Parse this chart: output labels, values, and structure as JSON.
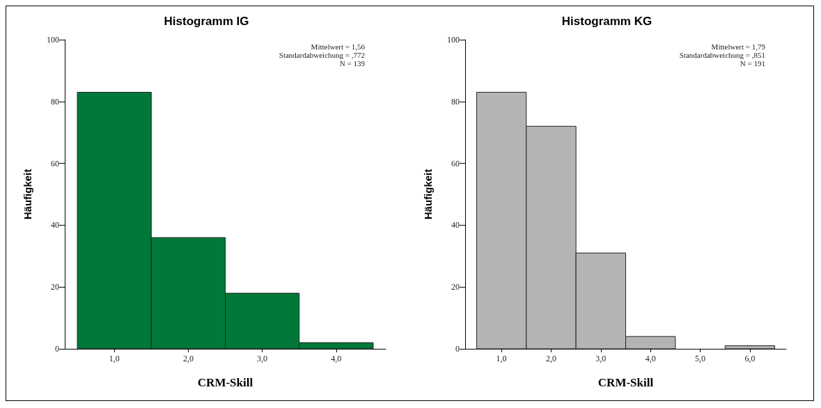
{
  "chart_data": [
    {
      "type": "histogram",
      "title": "Histogramm IG",
      "xlabel": "CRM-Skill",
      "ylabel": "Häufigkeit",
      "color": "#00783a",
      "bins": [
        0.5,
        1.5,
        2.5,
        3.5,
        4.5
      ],
      "values": [
        83,
        36,
        18,
        2
      ],
      "xlim": [
        0.33,
        4.67
      ],
      "xticks": [
        {
          "value": 1,
          "label": "1,0"
        },
        {
          "value": 2,
          "label": "2,0"
        },
        {
          "value": 3,
          "label": "3,0"
        },
        {
          "value": 4,
          "label": "4,0"
        }
      ],
      "ylim": [
        0,
        100
      ],
      "yticks": [
        0,
        20,
        40,
        60,
        80,
        100
      ],
      "annotations": [
        "Mittelwert = 1,56",
        "Standardabweichung = ,772",
        "N = 139"
      ]
    },
    {
      "type": "histogram",
      "title": "Histogramm KG",
      "xlabel": "CRM-Skill",
      "ylabel": "Häufigkeit",
      "color": "#b4b4b4",
      "bins": [
        0.5,
        1.5,
        2.5,
        3.5,
        4.5,
        5.5,
        6.5
      ],
      "values": [
        83,
        72,
        31,
        4,
        0,
        1
      ],
      "xlim": [
        0.27,
        6.73
      ],
      "xticks": [
        {
          "value": 1,
          "label": "1,0"
        },
        {
          "value": 2,
          "label": "2,0"
        },
        {
          "value": 3,
          "label": "3,0"
        },
        {
          "value": 4,
          "label": "4,0"
        },
        {
          "value": 5,
          "label": "5,0"
        },
        {
          "value": 6,
          "label": "6,0"
        }
      ],
      "ylim": [
        0,
        100
      ],
      "yticks": [
        0,
        20,
        40,
        60,
        80,
        100
      ],
      "annotations": [
        "Mittelwert = 1,79",
        "Standardabweichung = ,851",
        "N = 191"
      ]
    }
  ]
}
